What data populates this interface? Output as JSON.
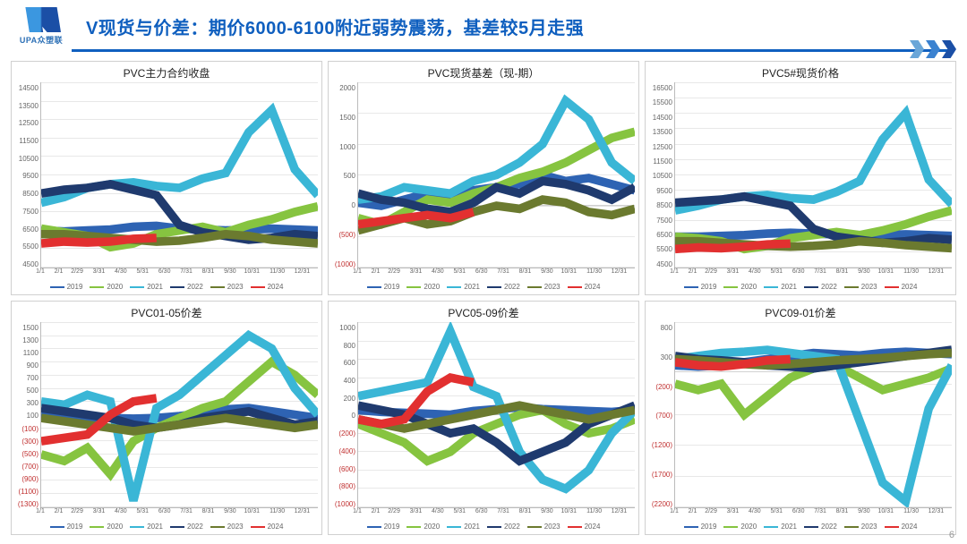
{
  "page": {
    "logo_text": "UPA众塑联",
    "title": "V现货与价差：期价6000-6100附近弱势震荡，基差较5月走强",
    "page_number": "6"
  },
  "common": {
    "x_categories": [
      "1/1",
      "2/1",
      "2/29",
      "3/31",
      "4/30",
      "5/31",
      "6/30",
      "7/31",
      "8/31",
      "9/30",
      "10/31",
      "11/30",
      "12/31"
    ],
    "x_count": 12,
    "series_meta": [
      {
        "name": "2019",
        "color": "#2e63b3"
      },
      {
        "name": "2020",
        "color": "#86c440"
      },
      {
        "name": "2021",
        "color": "#3ab6d6"
      },
      {
        "name": "2022",
        "color": "#1f3a6e"
      },
      {
        "name": "2023",
        "color": "#6b7a2f"
      },
      {
        "name": "2024",
        "color": "#e23030"
      }
    ],
    "grid_color": "#e8e8e8",
    "line_width": 1.2
  },
  "charts": [
    {
      "title": "PVC主力合约收盘",
      "ylim": [
        4500,
        14500
      ],
      "yticks": [
        4500,
        5500,
        6500,
        7500,
        8500,
        9500,
        10500,
        11500,
        12500,
        13500,
        14500
      ],
      "series": {
        "2019": [
          6500,
          6450,
          6500,
          6550,
          6700,
          6750,
          6600,
          6550,
          6500,
          6550,
          6600,
          6550,
          6500
        ],
        "2020": [
          6600,
          6400,
          6200,
          5600,
          5800,
          6300,
          6500,
          6700,
          6400,
          6800,
          7100,
          7500,
          7800
        ],
        "2021": [
          8000,
          8300,
          8800,
          9000,
          9100,
          8900,
          8800,
          9300,
          9600,
          11800,
          13000,
          9800,
          8400
        ],
        "2022": [
          8500,
          8700,
          8800,
          9000,
          8700,
          8400,
          6800,
          6400,
          6200,
          6000,
          6100,
          6300,
          6200
        ],
        "2023": [
          6300,
          6300,
          6200,
          6100,
          6000,
          5900,
          5950,
          6100,
          6300,
          6200,
          6000,
          5900,
          5800
        ],
        "2024": [
          5800,
          5900,
          5850,
          5900,
          6050,
          6100
        ]
      }
    },
    {
      "title": "PVC现货基差（现-期）",
      "ylim": [
        -1000,
        2000
      ],
      "yticks": [
        -1000,
        -500,
        0,
        500,
        1000,
        1500,
        2000
      ],
      "series": {
        "2019": [
          50,
          0,
          100,
          200,
          150,
          250,
          300,
          350,
          500,
          400,
          450,
          350,
          250
        ],
        "2020": [
          -200,
          -300,
          -100,
          100,
          50,
          200,
          300,
          450,
          550,
          700,
          900,
          1100,
          1200
        ],
        "2021": [
          100,
          150,
          300,
          250,
          200,
          400,
          500,
          700,
          1000,
          1700,
          1400,
          700,
          400
        ],
        "2022": [
          200,
          100,
          50,
          -50,
          -100,
          50,
          300,
          200,
          400,
          350,
          250,
          100,
          300
        ],
        "2023": [
          -400,
          -300,
          -200,
          -300,
          -250,
          -100,
          0,
          -50,
          100,
          50,
          -100,
          -150,
          -50
        ],
        "2024": [
          -300,
          -250,
          -200,
          -150,
          -200,
          -100
        ]
      }
    },
    {
      "title": "PVC5#现货价格",
      "ylim": [
        4500,
        16500
      ],
      "yticks": [
        4500,
        5500,
        6500,
        7500,
        8500,
        9500,
        10500,
        11500,
        12500,
        13500,
        14500,
        15500,
        16500
      ],
      "series": {
        "2019": [
          6500,
          6500,
          6550,
          6600,
          6700,
          6750,
          6700,
          6650,
          6600,
          6600,
          6650,
          6600,
          6550
        ],
        "2020": [
          6500,
          6400,
          6200,
          5700,
          5900,
          6400,
          6600,
          6800,
          6600,
          6900,
          7300,
          7800,
          8200
        ],
        "2021": [
          8200,
          8500,
          8900,
          9100,
          9200,
          9000,
          8900,
          9400,
          10100,
          12800,
          14500,
          10200,
          8600
        ],
        "2022": [
          8700,
          8800,
          8900,
          9100,
          8800,
          8500,
          7000,
          6500,
          6300,
          6100,
          6200,
          6400,
          6300
        ],
        "2023": [
          6200,
          6200,
          6100,
          6000,
          5900,
          5850,
          5900,
          6000,
          6200,
          6100,
          5950,
          5850,
          5750
        ],
        "2024": [
          5700,
          5800,
          5750,
          5850,
          6000,
          6050
        ]
      }
    },
    {
      "title": "PVC01-05价差",
      "ylim": [
        -1300,
        1500
      ],
      "yticks": [
        -1300,
        -1100,
        -900,
        -700,
        -500,
        -300,
        -100,
        100,
        300,
        500,
        700,
        900,
        1100,
        1300,
        1500
      ],
      "series": {
        "2019": [
          100,
          80,
          60,
          50,
          40,
          50,
          80,
          120,
          180,
          200,
          150,
          100,
          50
        ],
        "2020": [
          -500,
          -600,
          -400,
          -800,
          -300,
          -100,
          50,
          200,
          300,
          600,
          900,
          700,
          400
        ],
        "2021": [
          300,
          250,
          400,
          300,
          -1200,
          200,
          400,
          700,
          1000,
          1300,
          1100,
          500,
          100
        ],
        "2022": [
          200,
          150,
          100,
          50,
          -50,
          -100,
          -50,
          50,
          100,
          150,
          50,
          -50,
          0
        ],
        "2023": [
          50,
          0,
          -50,
          -100,
          -150,
          -100,
          -50,
          0,
          50,
          0,
          -50,
          -100,
          -50
        ],
        "2024": [
          -300,
          -250,
          -200,
          100,
          300,
          350
        ]
      }
    },
    {
      "title": "PVC05-09价差",
      "ylim": [
        -1000,
        1000
      ],
      "yticks": [
        -1000,
        -800,
        -600,
        -400,
        -200,
        0,
        200,
        400,
        600,
        800,
        1000
      ],
      "series": {
        "2019": [
          50,
          30,
          20,
          10,
          0,
          40,
          60,
          80,
          60,
          50,
          40,
          30,
          50
        ],
        "2020": [
          -100,
          -200,
          -300,
          -500,
          -400,
          -200,
          -100,
          0,
          50,
          -100,
          -200,
          -150,
          -50
        ],
        "2021": [
          200,
          250,
          300,
          350,
          900,
          300,
          200,
          -400,
          -700,
          -800,
          -600,
          -200,
          50
        ],
        "2022": [
          100,
          50,
          0,
          -100,
          -200,
          -150,
          -300,
          -500,
          -400,
          -300,
          -100,
          0,
          100
        ],
        "2023": [
          -50,
          -100,
          -150,
          -100,
          -50,
          0,
          50,
          100,
          50,
          0,
          -50,
          0,
          50
        ],
        "2024": [
          -50,
          -100,
          -50,
          250,
          400,
          350
        ]
      }
    },
    {
      "title": "PVC09-01价差",
      "ylim": [
        -2200,
        800
      ],
      "yticks": [
        -2200,
        -1700,
        -1200,
        -700,
        -200,
        300,
        800
      ],
      "series": {
        "2019": [
          100,
          80,
          100,
          150,
          200,
          250,
          300,
          280,
          260,
          300,
          320,
          300,
          280
        ],
        "2020": [
          -200,
          -300,
          -200,
          -700,
          -400,
          -100,
          50,
          100,
          -100,
          -300,
          -200,
          -100,
          50
        ],
        "2021": [
          200,
          250,
          300,
          320,
          350,
          300,
          250,
          200,
          -800,
          -1800,
          -2100,
          -600,
          100
        ],
        "2022": [
          250,
          200,
          180,
          150,
          100,
          80,
          50,
          100,
          150,
          200,
          250,
          300,
          350
        ],
        "2023": [
          200,
          180,
          150,
          120,
          100,
          120,
          150,
          180,
          200,
          220,
          250,
          280,
          300
        ],
        "2024": [
          150,
          100,
          80,
          120,
          180,
          200
        ]
      }
    }
  ]
}
